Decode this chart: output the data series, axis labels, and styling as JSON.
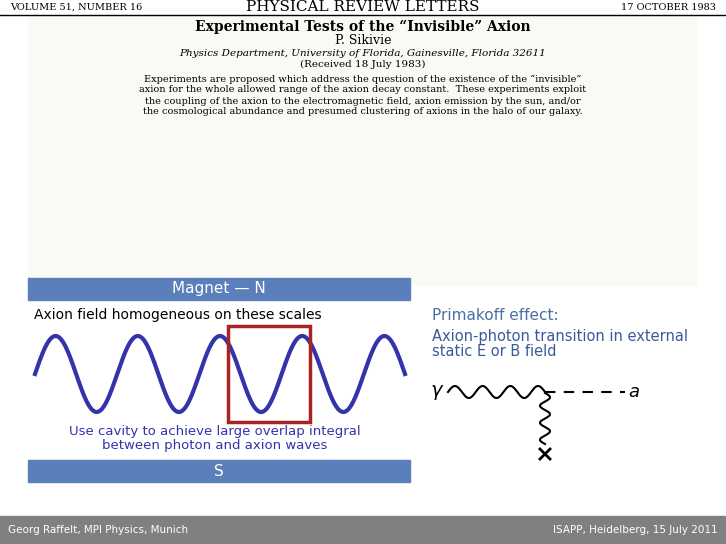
{
  "bg_color": "#ffffff",
  "footer_bg": "#808080",
  "header_journal": "PHYSICAL REVIEW LETTERS",
  "header_vol": "VOLUME 51, NUMBER 16",
  "header_date": "17 OCTOBER 1983",
  "paper_title": "Experimental Tests of the “Invisible” Axion",
  "paper_author": "P. Sikivie",
  "paper_affil": "Physics Department, University of Florida, Gainesville, Florida 32611",
  "paper_received": "(Received 18 July 1983)",
  "paper_abstract_lines": [
    "Experiments are proposed which address the question of the existence of the “invisible”",
    "axion for the whole allowed range of the axion decay constant.  These experiments exploit",
    "the coupling of the axion to the electromagnetic field, axion emission by the sun, and/or",
    "the cosmological abundance and presumed clustering of axions in the halo of our galaxy."
  ],
  "blue_bar_color": "#5b7fba",
  "blue_bar_text": "Magnet — N",
  "blue_bar2_text": "S",
  "left_label": "Axion field homogeneous on these scales",
  "left_label_color": "#000000",
  "wave_color": "#3333aa",
  "rect_color": "#aa2222",
  "cavity_text_line1": "Use cavity to achieve large overlap integral",
  "cavity_text_line2": "between photon and axion waves",
  "cavity_text_color": "#3333aa",
  "right_label1": "Primakoff effect:",
  "right_label1_color": "#4a6fa5",
  "right_label2_line1": "Axion-photon transition in external",
  "right_label2_line2": "static E or B field",
  "right_label2_color": "#3a5a9a",
  "footer_left": "Georg Raffelt, MPI Physics, Munich",
  "footer_right": "ISAPP, Heidelberg, 15 July 2011",
  "footer_text_color": "#ffffff"
}
